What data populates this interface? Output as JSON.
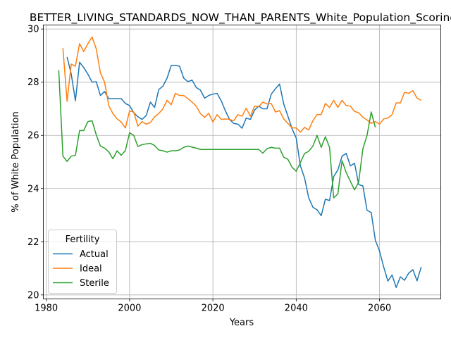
{
  "chart_data": {
    "type": "line",
    "title": "BETTER_LIVING_STANDARDS_NOW_THAN_PARENTS_White_Population_Scoring",
    "xlabel": "Years",
    "ylabel": "% of White Population",
    "xlim": [
      1979.3,
      2074.7
    ],
    "ylim": [
      19.85,
      30.15
    ],
    "xticks": [
      1980,
      2000,
      2020,
      2040,
      2060
    ],
    "yticks": [
      20,
      22,
      24,
      26,
      28,
      30
    ],
    "grid": true,
    "legend": {
      "title": "Fertility",
      "position": "lower-left"
    },
    "series": [
      {
        "name": "Actual",
        "color": "#1f77b4",
        "points": [
          [
            1985,
            28.95
          ],
          [
            1986,
            28.3
          ],
          [
            1987,
            27.3
          ],
          [
            1988,
            28.75
          ],
          [
            1989,
            28.55
          ],
          [
            1990,
            28.3
          ],
          [
            1991,
            28.0
          ],
          [
            1992,
            28.02
          ],
          [
            1993,
            27.5
          ],
          [
            1994,
            27.65
          ],
          [
            1995,
            27.38
          ],
          [
            1996,
            27.38
          ],
          [
            1997,
            27.38
          ],
          [
            1998,
            27.38
          ],
          [
            1999,
            27.2
          ],
          [
            2000,
            27.12
          ],
          [
            2001,
            26.85
          ],
          [
            2002,
            26.7
          ],
          [
            2003,
            26.6
          ],
          [
            2004,
            26.75
          ],
          [
            2005,
            27.25
          ],
          [
            2006,
            27.05
          ],
          [
            2007,
            27.72
          ],
          [
            2008,
            27.85
          ],
          [
            2009,
            28.15
          ],
          [
            2010,
            28.63
          ],
          [
            2011,
            28.63
          ],
          [
            2012,
            28.6
          ],
          [
            2013,
            28.15
          ],
          [
            2014,
            28.02
          ],
          [
            2015,
            28.08
          ],
          [
            2016,
            27.8
          ],
          [
            2017,
            27.7
          ],
          [
            2018,
            27.4
          ],
          [
            2019,
            27.5
          ],
          [
            2020,
            27.55
          ],
          [
            2021,
            27.58
          ],
          [
            2022,
            27.3
          ],
          [
            2023,
            26.92
          ],
          [
            2024,
            26.6
          ],
          [
            2025,
            26.45
          ],
          [
            2026,
            26.42
          ],
          [
            2027,
            26.27
          ],
          [
            2028,
            26.65
          ],
          [
            2029,
            26.6
          ],
          [
            2030,
            26.95
          ],
          [
            2031,
            27.1
          ],
          [
            2032,
            27.0
          ],
          [
            2033,
            27.0
          ],
          [
            2034,
            27.55
          ],
          [
            2035,
            27.75
          ],
          [
            2036,
            27.93
          ],
          [
            2037,
            27.18
          ],
          [
            2038,
            26.72
          ],
          [
            2039,
            26.25
          ],
          [
            2040,
            25.9
          ],
          [
            2041,
            24.85
          ],
          [
            2042,
            24.4
          ],
          [
            2043,
            23.65
          ],
          [
            2044,
            23.3
          ],
          [
            2045,
            23.2
          ],
          [
            2046,
            22.98
          ],
          [
            2047,
            23.6
          ],
          [
            2048,
            23.55
          ],
          [
            2049,
            24.45
          ],
          [
            2050,
            24.7
          ],
          [
            2051,
            25.22
          ],
          [
            2052,
            25.32
          ],
          [
            2053,
            24.85
          ],
          [
            2054,
            24.95
          ],
          [
            2055,
            24.15
          ],
          [
            2056,
            24.1
          ],
          [
            2057,
            23.18
          ],
          [
            2058,
            23.1
          ],
          [
            2059,
            22.05
          ],
          [
            2060,
            21.65
          ],
          [
            2061,
            21.05
          ],
          [
            2062,
            20.52
          ],
          [
            2063,
            20.75
          ],
          [
            2064,
            20.28
          ],
          [
            2065,
            20.68
          ],
          [
            2066,
            20.55
          ],
          [
            2067,
            20.82
          ],
          [
            2068,
            20.95
          ],
          [
            2069,
            20.53
          ],
          [
            2070,
            21.05
          ]
        ]
      },
      {
        "name": "Ideal",
        "color": "#ff7f0e",
        "points": [
          [
            1984,
            29.28
          ],
          [
            1985,
            27.28
          ],
          [
            1986,
            28.68
          ],
          [
            1987,
            28.6
          ],
          [
            1988,
            29.45
          ],
          [
            1989,
            29.15
          ],
          [
            1990,
            29.45
          ],
          [
            1991,
            29.7
          ],
          [
            1992,
            29.25
          ],
          [
            1993,
            28.35
          ],
          [
            1994,
            28.0
          ],
          [
            1995,
            27.12
          ],
          [
            1996,
            26.82
          ],
          [
            1997,
            26.62
          ],
          [
            1998,
            26.5
          ],
          [
            1999,
            26.28
          ],
          [
            2000,
            26.92
          ],
          [
            2001,
            26.88
          ],
          [
            2002,
            26.35
          ],
          [
            2003,
            26.52
          ],
          [
            2004,
            26.42
          ],
          [
            2005,
            26.48
          ],
          [
            2006,
            26.7
          ],
          [
            2007,
            26.82
          ],
          [
            2008,
            27.0
          ],
          [
            2009,
            27.32
          ],
          [
            2010,
            27.15
          ],
          [
            2011,
            27.58
          ],
          [
            2012,
            27.5
          ],
          [
            2013,
            27.5
          ],
          [
            2014,
            27.38
          ],
          [
            2015,
            27.25
          ],
          [
            2016,
            27.1
          ],
          [
            2017,
            26.82
          ],
          [
            2018,
            26.68
          ],
          [
            2019,
            26.83
          ],
          [
            2020,
            26.5
          ],
          [
            2021,
            26.78
          ],
          [
            2022,
            26.6
          ],
          [
            2023,
            26.62
          ],
          [
            2024,
            26.6
          ],
          [
            2025,
            26.55
          ],
          [
            2026,
            26.78
          ],
          [
            2027,
            26.72
          ],
          [
            2028,
            27.02
          ],
          [
            2029,
            26.72
          ],
          [
            2030,
            27.1
          ],
          [
            2031,
            27.08
          ],
          [
            2032,
            27.25
          ],
          [
            2033,
            27.18
          ],
          [
            2034,
            27.2
          ],
          [
            2035,
            26.88
          ],
          [
            2036,
            26.93
          ],
          [
            2037,
            26.62
          ],
          [
            2038,
            26.45
          ],
          [
            2039,
            26.28
          ],
          [
            2040,
            26.28
          ],
          [
            2041,
            26.12
          ],
          [
            2042,
            26.3
          ],
          [
            2043,
            26.2
          ],
          [
            2044,
            26.55
          ],
          [
            2045,
            26.78
          ],
          [
            2046,
            26.78
          ],
          [
            2047,
            27.2
          ],
          [
            2048,
            27.05
          ],
          [
            2049,
            27.32
          ],
          [
            2050,
            27.05
          ],
          [
            2051,
            27.32
          ],
          [
            2052,
            27.12
          ],
          [
            2053,
            27.1
          ],
          [
            2054,
            26.9
          ],
          [
            2055,
            26.85
          ],
          [
            2056,
            26.68
          ],
          [
            2057,
            26.58
          ],
          [
            2058,
            26.45
          ],
          [
            2059,
            26.52
          ],
          [
            2060,
            26.42
          ],
          [
            2061,
            26.62
          ],
          [
            2062,
            26.65
          ],
          [
            2063,
            26.78
          ],
          [
            2064,
            27.22
          ],
          [
            2065,
            27.22
          ],
          [
            2066,
            27.62
          ],
          [
            2067,
            27.58
          ],
          [
            2068,
            27.68
          ],
          [
            2069,
            27.4
          ],
          [
            2070,
            27.32
          ]
        ]
      },
      {
        "name": "Sterile",
        "color": "#2ca02c",
        "points": [
          [
            1983,
            28.45
          ],
          [
            1984,
            25.22
          ],
          [
            1985,
            25.02
          ],
          [
            1986,
            25.22
          ],
          [
            1987,
            25.25
          ],
          [
            1988,
            26.18
          ],
          [
            1989,
            26.18
          ],
          [
            1990,
            26.52
          ],
          [
            1991,
            26.55
          ],
          [
            1992,
            26.02
          ],
          [
            1993,
            25.6
          ],
          [
            1994,
            25.52
          ],
          [
            1995,
            25.38
          ],
          [
            1996,
            25.12
          ],
          [
            1997,
            25.42
          ],
          [
            1998,
            25.25
          ],
          [
            1999,
            25.43
          ],
          [
            2000,
            26.1
          ],
          [
            2001,
            26.0
          ],
          [
            2002,
            25.58
          ],
          [
            2003,
            25.65
          ],
          [
            2004,
            25.68
          ],
          [
            2005,
            25.7
          ],
          [
            2006,
            25.62
          ],
          [
            2007,
            25.45
          ],
          [
            2008,
            25.42
          ],
          [
            2009,
            25.37
          ],
          [
            2010,
            25.42
          ],
          [
            2011,
            25.42
          ],
          [
            2012,
            25.45
          ],
          [
            2013,
            25.55
          ],
          [
            2014,
            25.6
          ],
          [
            2015,
            25.56
          ],
          [
            2016,
            25.52
          ],
          [
            2017,
            25.47
          ],
          [
            2018,
            25.47
          ],
          [
            2019,
            25.47
          ],
          [
            2020,
            25.47
          ],
          [
            2021,
            25.47
          ],
          [
            2022,
            25.47
          ],
          [
            2023,
            25.47
          ],
          [
            2024,
            25.47
          ],
          [
            2025,
            25.47
          ],
          [
            2026,
            25.47
          ],
          [
            2027,
            25.47
          ],
          [
            2028,
            25.47
          ],
          [
            2029,
            25.47
          ],
          [
            2030,
            25.47
          ],
          [
            2031,
            25.47
          ],
          [
            2032,
            25.33
          ],
          [
            2033,
            25.5
          ],
          [
            2034,
            25.55
          ],
          [
            2035,
            25.52
          ],
          [
            2036,
            25.52
          ],
          [
            2037,
            25.18
          ],
          [
            2038,
            25.1
          ],
          [
            2039,
            24.8
          ],
          [
            2040,
            24.65
          ],
          [
            2041,
            24.98
          ],
          [
            2042,
            25.32
          ],
          [
            2043,
            25.4
          ],
          [
            2044,
            25.6
          ],
          [
            2045,
            26.0
          ],
          [
            2046,
            25.55
          ],
          [
            2047,
            25.95
          ],
          [
            2048,
            25.55
          ],
          [
            2049,
            23.65
          ],
          [
            2050,
            23.8
          ],
          [
            2051,
            25.05
          ],
          [
            2052,
            24.6
          ],
          [
            2053,
            24.27
          ],
          [
            2054,
            23.95
          ],
          [
            2055,
            24.25
          ],
          [
            2056,
            25.5
          ],
          [
            2057,
            26.0
          ],
          [
            2058,
            26.88
          ],
          [
            2059,
            26.3
          ]
        ]
      }
    ]
  }
}
